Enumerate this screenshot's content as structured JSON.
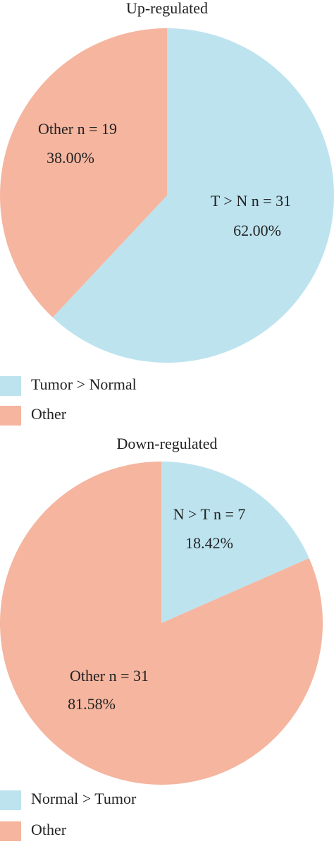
{
  "chart_data": [
    {
      "type": "pie",
      "title": "Up-regulated",
      "categories": [
        "Tumor > Normal",
        "Other"
      ],
      "values": [
        62,
        38
      ],
      "value_labels": [
        "62.00%",
        "38.00%"
      ],
      "slice_labels": [
        "T > N n = 31",
        "Other  n = 19"
      ],
      "colors": [
        "#bde3ef",
        "#f5b59f"
      ]
    },
    {
      "type": "pie",
      "title": "Down-regulated",
      "categories": [
        "Normal > Tumor",
        "Other"
      ],
      "values": [
        18.42,
        81.58
      ],
      "value_labels": [
        "18.42%",
        "81.58%"
      ],
      "slice_labels": [
        "N > T n = 7",
        "Other  n = 31"
      ],
      "colors": [
        "#bde3ef",
        "#f5b59f"
      ]
    }
  ]
}
